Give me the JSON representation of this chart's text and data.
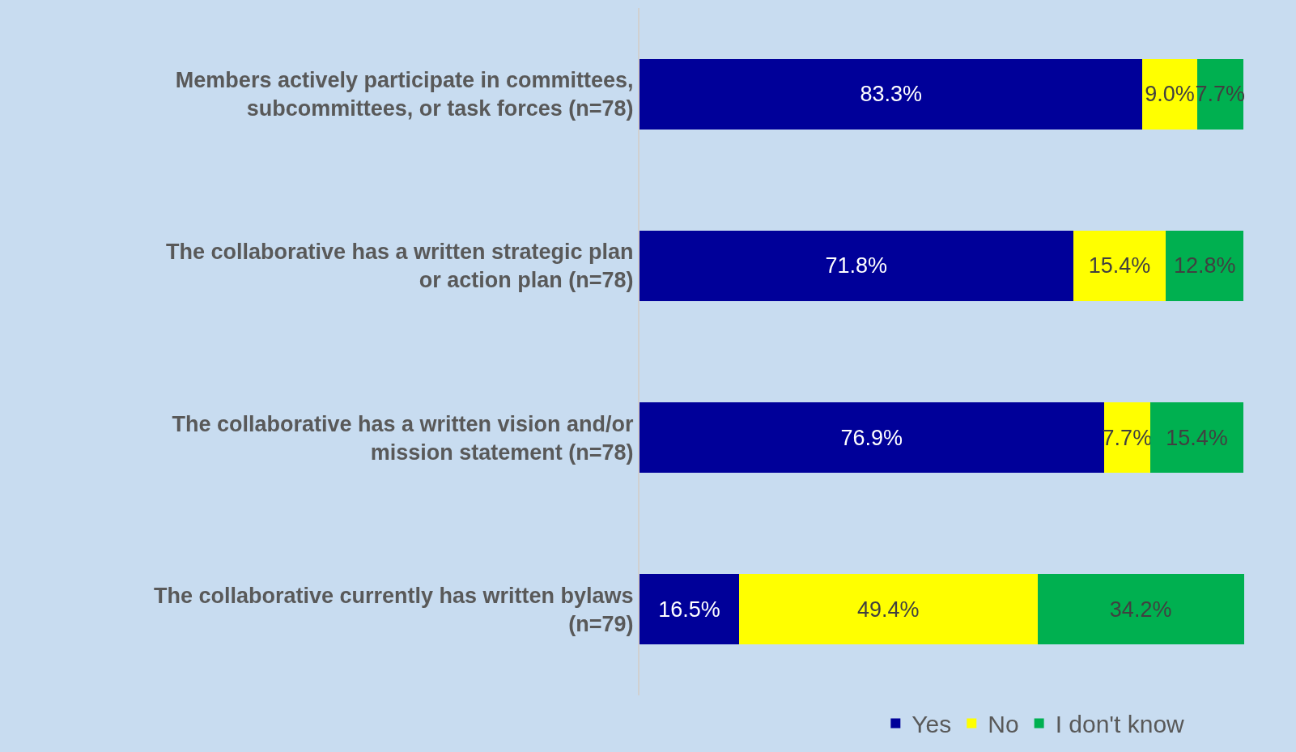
{
  "chart_data": {
    "type": "bar",
    "orientation": "horizontal",
    "stacked": true,
    "categories": [
      "Members actively participate in committees, subcommittees, or task forces (n=78)",
      "The collaborative has a written strategic plan or action plan (n=78)",
      "The collaborative has a written vision and/or mission statement (n=78)",
      "The collaborative currently has written bylaws (n=79)"
    ],
    "series": [
      {
        "name": "Yes",
        "color": "#000099",
        "values": [
          83.3,
          71.8,
          76.9,
          16.5
        ],
        "value_labels": [
          "83.3%",
          "71.8%",
          "76.9%",
          "16.5%"
        ]
      },
      {
        "name": "No",
        "color": "#ffff00",
        "values": [
          9.0,
          15.4,
          7.7,
          49.4
        ],
        "value_labels": [
          "9.0%",
          "15.4%",
          "7.7%",
          "49.4%"
        ]
      },
      {
        "name": "I don't know",
        "color": "#00b050",
        "values": [
          7.7,
          12.8,
          15.4,
          34.2
        ],
        "value_labels": [
          "7.7%",
          "12.8%",
          "15.4%",
          "34.2%"
        ]
      }
    ],
    "tick_labels": "y",
    "grid": false,
    "legend": "bottom"
  }
}
